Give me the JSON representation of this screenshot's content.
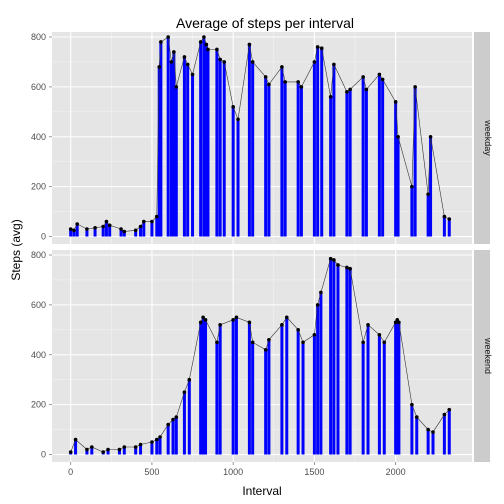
{
  "chart_data": {
    "type": "line",
    "title": "Average of steps per interval",
    "xlabel": "Interval",
    "ylabel": "Steps (avg)",
    "xlim": [
      -115,
      2470
    ],
    "ylim": [
      -30,
      820
    ],
    "x_ticks": [
      "0",
      "500",
      "1000",
      "1500",
      "2000"
    ],
    "y_ticks": [
      "0",
      "200",
      "400",
      "600",
      "800"
    ],
    "grid": true,
    "panels": [
      {
        "name": "weekday",
        "bar_color": "#0000ff",
        "point_color": "#000000",
        "line_color": "#333333",
        "x": [
          0,
          20,
          40,
          100,
          150,
          200,
          220,
          240,
          310,
          330,
          400,
          430,
          450,
          500,
          530,
          545,
          555,
          600,
          620,
          635,
          650,
          700,
          720,
          750,
          800,
          820,
          835,
          845,
          900,
          920,
          945,
          1000,
          1030,
          1100,
          1120,
          1200,
          1220,
          1300,
          1320,
          1400,
          1420,
          1500,
          1520,
          1545,
          1600,
          1620,
          1700,
          1720,
          1800,
          1820,
          1900,
          1920,
          2000,
          2015,
          2100,
          2120,
          2200,
          2215,
          2300,
          2330
        ],
        "y": [
          30,
          25,
          50,
          30,
          35,
          40,
          60,
          45,
          30,
          20,
          25,
          40,
          60,
          60,
          80,
          680,
          780,
          800,
          700,
          740,
          600,
          720,
          690,
          650,
          780,
          800,
          770,
          750,
          750,
          710,
          700,
          520,
          470,
          770,
          700,
          640,
          610,
          680,
          620,
          620,
          600,
          700,
          760,
          755,
          560,
          690,
          580,
          590,
          640,
          590,
          650,
          630,
          540,
          400,
          200,
          600,
          170,
          400,
          80,
          70
        ]
      },
      {
        "name": "weekend",
        "bar_color": "#0000ff",
        "point_color": "#000000",
        "line_color": "#333333",
        "x": [
          0,
          30,
          100,
          130,
          200,
          230,
          300,
          330,
          400,
          430,
          500,
          530,
          550,
          600,
          630,
          650,
          700,
          730,
          800,
          815,
          830,
          900,
          920,
          1000,
          1020,
          1100,
          1120,
          1200,
          1220,
          1300,
          1330,
          1400,
          1430,
          1500,
          1520,
          1540,
          1600,
          1620,
          1645,
          1700,
          1720,
          1800,
          1830,
          1900,
          1930,
          2000,
          2010,
          2020,
          2100,
          2130,
          2200,
          2230,
          2300,
          2330
        ],
        "y": [
          10,
          60,
          20,
          30,
          10,
          20,
          20,
          30,
          30,
          40,
          50,
          60,
          70,
          120,
          140,
          150,
          250,
          300,
          530,
          550,
          540,
          450,
          520,
          540,
          550,
          530,
          450,
          420,
          460,
          520,
          550,
          500,
          450,
          480,
          600,
          650,
          785,
          780,
          760,
          750,
          745,
          450,
          520,
          480,
          450,
          530,
          540,
          530,
          200,
          150,
          100,
          90,
          160,
          180
        ]
      }
    ]
  }
}
